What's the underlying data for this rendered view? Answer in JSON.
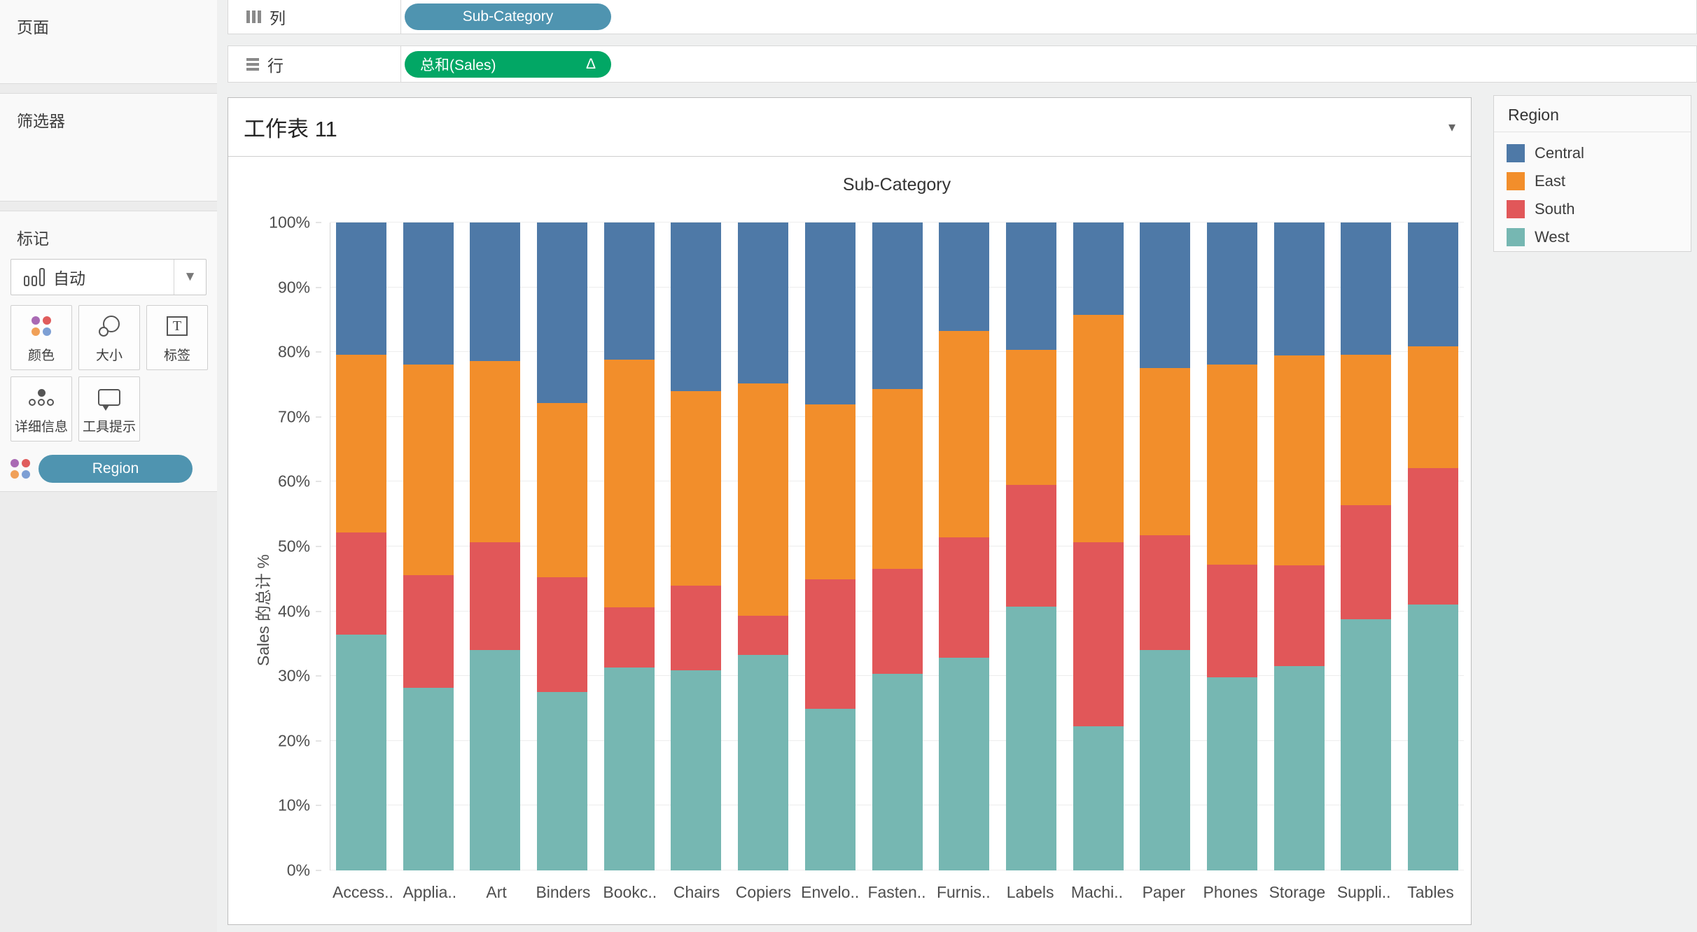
{
  "sidebar": {
    "pages_label": "页面",
    "filters_label": "筛选器",
    "marks": {
      "label": "标记",
      "mark_type": "自动",
      "buttons": [
        {
          "label": "颜色",
          "icon": "color-dots"
        },
        {
          "label": "大小",
          "icon": "size-circles"
        },
        {
          "label": "标签",
          "icon": "text-box"
        },
        {
          "label": "详细信息",
          "icon": "detail-dots"
        },
        {
          "label": "工具提示",
          "icon": "tooltip-bubble"
        }
      ],
      "color_pill": "Region"
    }
  },
  "shelves": {
    "columns_label": "列",
    "rows_label": "行",
    "columns_pill": "Sub-Category",
    "rows_pill": "总和(Sales)",
    "rows_pill_suffix": "Δ"
  },
  "worksheet": {
    "title": "工作表 11",
    "caret": "▾"
  },
  "legend": {
    "title": "Region",
    "items": [
      {
        "label": "Central",
        "color": "#4e79a7"
      },
      {
        "label": "East",
        "color": "#f28e2b"
      },
      {
        "label": "South",
        "color": "#e15759"
      },
      {
        "label": "West",
        "color": "#76b7b2"
      }
    ]
  },
  "chart_data": {
    "type": "bar",
    "stacked": true,
    "percent_of_total": true,
    "title": "Sub-Category",
    "ylabel": "Sales 的总计 %",
    "ylim": [
      0,
      100
    ],
    "yticks": [
      "0%",
      "10%",
      "20%",
      "30%",
      "40%",
      "50%",
      "60%",
      "70%",
      "80%",
      "90%",
      "100%"
    ],
    "grid": true,
    "legend_position": "right",
    "categories": [
      "Access..",
      "Applia..",
      "Art",
      "Binders",
      "Bookc..",
      "Chairs",
      "Copiers",
      "Envelo..",
      "Fasten..",
      "Furnis..",
      "Labels",
      "Machi..",
      "Paper",
      "Phones",
      "Storage",
      "Suppli..",
      "Tables"
    ],
    "stack_order_bottom_to_top": [
      "West",
      "South",
      "East",
      "Central"
    ],
    "series": [
      {
        "name": "West",
        "color": "#76b7b2",
        "values": [
          36.4,
          28.2,
          34.0,
          27.5,
          31.3,
          30.9,
          33.3,
          25.0,
          30.3,
          32.8,
          40.7,
          22.3,
          34.0,
          29.8,
          31.5,
          38.8,
          41.0
        ]
      },
      {
        "name": "South",
        "color": "#e15759",
        "values": [
          15.8,
          17.4,
          16.6,
          17.7,
          9.3,
          13.1,
          6.0,
          19.9,
          16.3,
          18.6,
          18.8,
          28.3,
          17.7,
          17.4,
          15.6,
          17.6,
          21.1
        ]
      },
      {
        "name": "East",
        "color": "#f28e2b",
        "values": [
          27.4,
          32.5,
          28.0,
          26.9,
          38.2,
          30.0,
          35.9,
          27.0,
          27.7,
          31.9,
          20.9,
          35.2,
          25.8,
          30.9,
          32.4,
          23.2,
          18.8
        ]
      },
      {
        "name": "Central",
        "color": "#4e79a7",
        "values": [
          20.4,
          21.9,
          21.4,
          27.9,
          21.2,
          26.0,
          24.8,
          28.1,
          25.7,
          16.7,
          19.6,
          14.2,
          22.5,
          21.9,
          20.5,
          20.4,
          19.1
        ]
      }
    ]
  }
}
